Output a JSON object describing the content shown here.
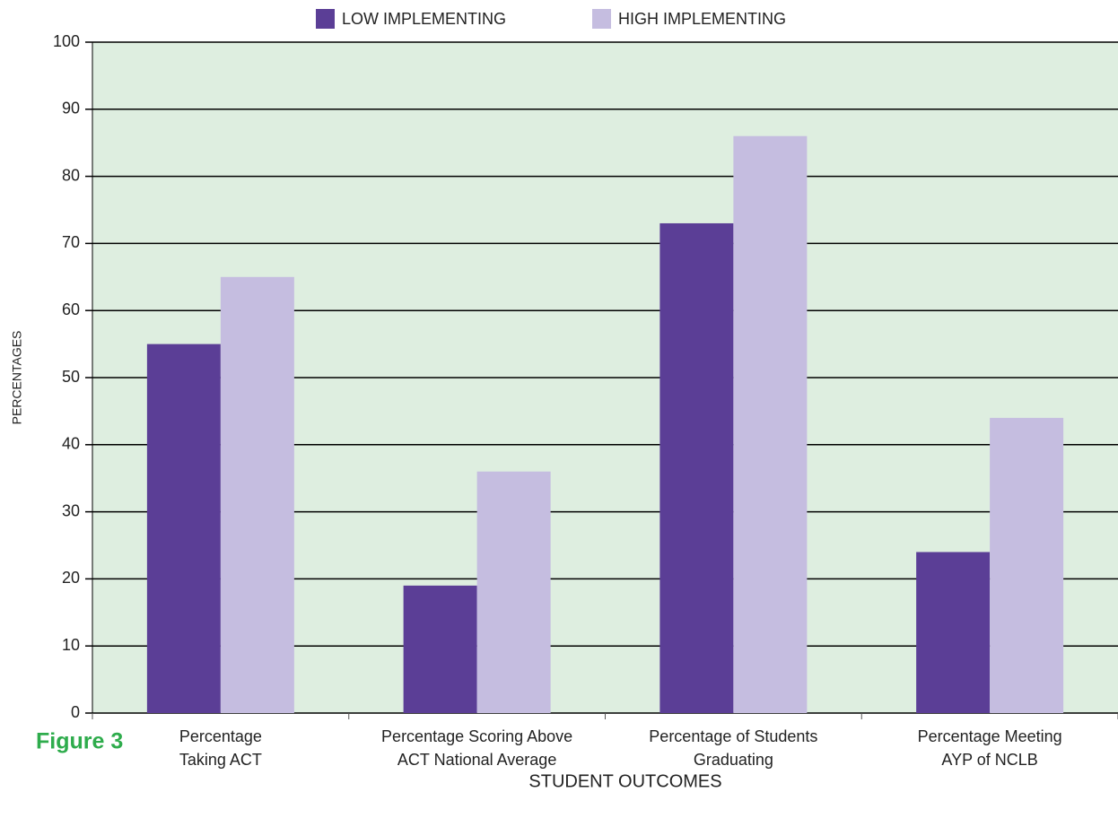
{
  "chart_data": {
    "type": "bar",
    "figure_label": "Figure 3",
    "x_label": "STUDENT OUTCOMES",
    "y_label": "PERCENTAGES",
    "categories": [
      [
        "Percentage",
        "Taking ACT"
      ],
      [
        "Percentage Scoring Above",
        "ACT National Average"
      ],
      [
        "Percentage of Students",
        "Graduating"
      ],
      [
        "Percentage Meeting",
        "AYP of NCLB"
      ]
    ],
    "series": [
      {
        "name": "LOW IMPLEMENTING",
        "color": "#5b3e96",
        "values": [
          55,
          19,
          73,
          24
        ]
      },
      {
        "name": "HIGH IMPLEMENTING",
        "color": "#c5bde0",
        "values": [
          65,
          36,
          86,
          44
        ]
      }
    ],
    "ylim": [
      0,
      100
    ],
    "yticks": [
      0,
      10,
      20,
      30,
      40,
      50,
      60,
      70,
      80,
      90,
      100
    ],
    "grid": true,
    "legend": "top",
    "plot_background": "#deeee0"
  }
}
